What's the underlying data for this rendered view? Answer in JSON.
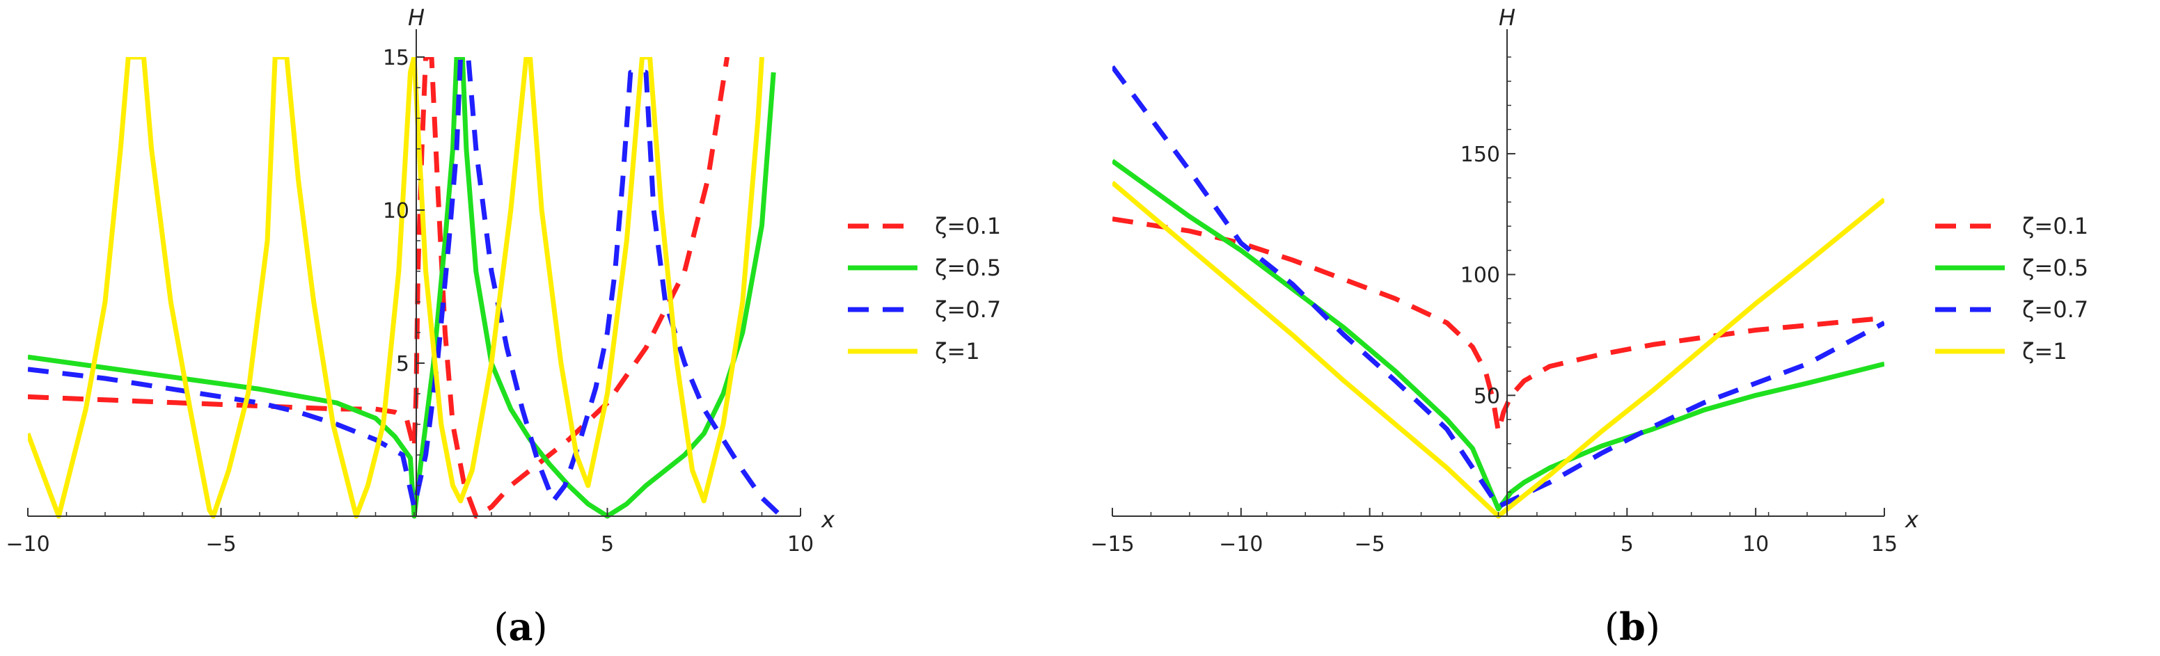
{
  "colors": {
    "series_0.1": "#ff2020",
    "series_0.5": "#1fe01f",
    "series_0.7": "#1f1fff",
    "series_1": "#ffee00",
    "axis": "#333333"
  },
  "chart_data": [
    {
      "panel_label": "a",
      "type": "line",
      "xlabel": "x",
      "ylabel": "H",
      "xlim": [
        -10,
        10
      ],
      "ylim": [
        0,
        15
      ],
      "xticks": [
        "−10",
        "−5",
        "5",
        "10"
      ],
      "yticks": [
        "5",
        "10",
        "15"
      ],
      "legend_position": "right",
      "series": [
        {
          "name": "ζ=0.1",
          "style": "dashed",
          "color": "#ff2020",
          "points": [
            [
              -10,
              3.9
            ],
            [
              -8,
              3.8
            ],
            [
              -6,
              3.7
            ],
            [
              -4,
              3.6
            ],
            [
              -2,
              3.5
            ],
            [
              -1,
              3.5
            ],
            [
              -0.5,
              3.4
            ],
            [
              -0.2,
              3.2
            ],
            [
              0,
              2.2
            ],
            [
              0.05,
              4
            ],
            [
              0.1,
              8
            ],
            [
              0.2,
              12
            ],
            [
              0.3,
              15
            ],
            [
              0.45,
              15
            ],
            [
              0.6,
              11
            ],
            [
              0.8,
              6
            ],
            [
              1.0,
              3
            ],
            [
              1.3,
              1
            ],
            [
              1.6,
              0
            ],
            [
              2.0,
              0.3
            ],
            [
              2.5,
              1.0
            ],
            [
              3.0,
              1.5
            ],
            [
              3.5,
              2.0
            ],
            [
              4.0,
              2.5
            ],
            [
              5.0,
              3.7
            ],
            [
              6.0,
              5.5
            ],
            [
              7.0,
              8.0
            ],
            [
              7.6,
              11
            ],
            [
              8.1,
              15
            ]
          ]
        },
        {
          "name": "ζ=0.5",
          "style": "solid",
          "color": "#1fe01f",
          "points": [
            [
              -10,
              5.2
            ],
            [
              -8,
              4.85
            ],
            [
              -6,
              4.5
            ],
            [
              -4,
              4.15
            ],
            [
              -2,
              3.7
            ],
            [
              -1,
              3.2
            ],
            [
              -0.5,
              2.6
            ],
            [
              -0.1,
              1.9
            ],
            [
              0,
              0
            ],
            [
              0.2,
              2
            ],
            [
              0.5,
              5
            ],
            [
              0.8,
              9
            ],
            [
              1.0,
              12
            ],
            [
              1.1,
              15
            ],
            [
              1.25,
              15
            ],
            [
              1.35,
              12
            ],
            [
              1.6,
              8
            ],
            [
              2,
              5
            ],
            [
              2.5,
              3.5
            ],
            [
              3,
              2.5
            ],
            [
              3.5,
              1.7
            ],
            [
              4,
              1.0
            ],
            [
              4.5,
              0.4
            ],
            [
              5,
              0
            ],
            [
              5.5,
              0.4
            ],
            [
              6,
              1.0
            ],
            [
              6.5,
              1.5
            ],
            [
              7,
              2.0
            ],
            [
              7.5,
              2.7
            ],
            [
              8,
              4
            ],
            [
              8.5,
              6
            ],
            [
              9,
              9.5
            ],
            [
              9.3,
              14.5
            ]
          ]
        },
        {
          "name": "ζ=0.7",
          "style": "dashed",
          "color": "#1f1fff",
          "points": [
            [
              -10,
              4.8
            ],
            [
              -8,
              4.5
            ],
            [
              -6,
              4.1
            ],
            [
              -4,
              3.7
            ],
            [
              -3,
              3.4
            ],
            [
              -2,
              3.0
            ],
            [
              -1,
              2.5
            ],
            [
              -0.3,
              2
            ],
            [
              0,
              0.3
            ],
            [
              0.3,
              2
            ],
            [
              0.6,
              5
            ],
            [
              0.9,
              9
            ],
            [
              1.1,
              12
            ],
            [
              1.2,
              15
            ],
            [
              1.4,
              15
            ],
            [
              1.6,
              12
            ],
            [
              2.0,
              8
            ],
            [
              2.4,
              5.5
            ],
            [
              2.8,
              3.5
            ],
            [
              3.2,
              1.8
            ],
            [
              3.6,
              0.5
            ],
            [
              3.9,
              1
            ],
            [
              4.3,
              2.5
            ],
            [
              4.7,
              4.2
            ],
            [
              5.0,
              6
            ],
            [
              5.2,
              8
            ],
            [
              5.4,
              11
            ],
            [
              5.6,
              14.5
            ],
            [
              6.0,
              14.5
            ],
            [
              6.2,
              10
            ],
            [
              6.5,
              7
            ],
            [
              7,
              5
            ],
            [
              7.5,
              3.5
            ],
            [
              8,
              2.5
            ],
            [
              8.5,
              1.5
            ],
            [
              9,
              0.6
            ],
            [
              9.5,
              0
            ]
          ]
        },
        {
          "name": "ζ=1",
          "style": "solid",
          "color": "#ffee00",
          "points": [
            [
              -10,
              2.7
            ],
            [
              -9.5,
              1.0
            ],
            [
              -9.2,
              0
            ],
            [
              -8.9,
              1.5
            ],
            [
              -8.5,
              3.5
            ],
            [
              -8,
              7
            ],
            [
              -7.6,
              12
            ],
            [
              -7.4,
              15
            ],
            [
              -7.0,
              15
            ],
            [
              -6.8,
              12
            ],
            [
              -6.3,
              7
            ],
            [
              -5.8,
              3.5
            ],
            [
              -5.3,
              0.2
            ],
            [
              -5.2,
              0
            ],
            [
              -4.8,
              1.5
            ],
            [
              -4.3,
              4
            ],
            [
              -3.8,
              9
            ],
            [
              -3.6,
              15
            ],
            [
              -3.3,
              15
            ],
            [
              -3.0,
              11
            ],
            [
              -2.6,
              7
            ],
            [
              -2.1,
              3
            ],
            [
              -1.6,
              0.5
            ],
            [
              -1.5,
              0
            ],
            [
              -1.2,
              1
            ],
            [
              -0.8,
              3
            ],
            [
              -0.4,
              8
            ],
            [
              -0.1,
              14.5
            ],
            [
              0.0,
              15
            ],
            [
              0.3,
              8
            ],
            [
              0.7,
              3
            ],
            [
              1.0,
              1
            ],
            [
              1.2,
              0.5
            ],
            [
              1.5,
              1.5
            ],
            [
              2.0,
              5
            ],
            [
              2.5,
              10
            ],
            [
              2.9,
              15
            ],
            [
              3.0,
              15
            ],
            [
              3.3,
              10
            ],
            [
              3.8,
              5
            ],
            [
              4.2,
              2
            ],
            [
              4.5,
              1
            ],
            [
              5,
              4
            ],
            [
              5.5,
              9
            ],
            [
              5.9,
              15
            ],
            [
              6.1,
              15
            ],
            [
              6.4,
              10
            ],
            [
              6.8,
              5
            ],
            [
              7.2,
              1.5
            ],
            [
              7.5,
              0.5
            ],
            [
              8.0,
              3
            ],
            [
              8.5,
              7
            ],
            [
              8.9,
              13
            ],
            [
              9.0,
              15
            ]
          ]
        }
      ]
    },
    {
      "panel_label": "b",
      "type": "line",
      "xlabel": "x",
      "ylabel": "H",
      "xlim": [
        -15,
        15
      ],
      "ylim": [
        0,
        190
      ],
      "xticks": [
        "−15",
        "−10",
        "−5",
        "5",
        "10",
        "15"
      ],
      "yticks": [
        "50",
        "100",
        "150"
      ],
      "legend_position": "right",
      "series": [
        {
          "name": "ζ=0.1",
          "style": "dashed",
          "color": "#ff2020",
          "points": [
            [
              -15,
              123
            ],
            [
              -12,
              118
            ],
            [
              -10,
              113
            ],
            [
              -8,
              106
            ],
            [
              -6,
              98
            ],
            [
              -4,
              90
            ],
            [
              -2,
              80
            ],
            [
              -1,
              70
            ],
            [
              -0.5,
              60
            ],
            [
              -0.2,
              48
            ],
            [
              0,
              35
            ],
            [
              0.2,
              43
            ],
            [
              0.5,
              50
            ],
            [
              1,
              56
            ],
            [
              2,
              62
            ],
            [
              4,
              67
            ],
            [
              6,
              71
            ],
            [
              8,
              74
            ],
            [
              10,
              77
            ],
            [
              12,
              79
            ],
            [
              15,
              82
            ]
          ]
        },
        {
          "name": "ζ=0.5",
          "style": "solid",
          "color": "#1fe01f",
          "points": [
            [
              -15,
              147
            ],
            [
              -12,
              124
            ],
            [
              -10,
              110
            ],
            [
              -8,
              94
            ],
            [
              -6,
              78
            ],
            [
              -4,
              60
            ],
            [
              -2,
              40
            ],
            [
              -1,
              28
            ],
            [
              0,
              3
            ],
            [
              0.5,
              10
            ],
            [
              1,
              14
            ],
            [
              2,
              20
            ],
            [
              4,
              29
            ],
            [
              6,
              36
            ],
            [
              8,
              44
            ],
            [
              10,
              50
            ],
            [
              12,
              55
            ],
            [
              15,
              63
            ]
          ]
        },
        {
          "name": "ζ=0.7",
          "style": "dashed",
          "color": "#1f1fff",
          "points": [
            [
              -15,
              186
            ],
            [
              -12,
              143
            ],
            [
              -10,
              113
            ],
            [
              -8,
              96
            ],
            [
              -6,
              75
            ],
            [
              -4,
              56
            ],
            [
              -2,
              36
            ],
            [
              0,
              4
            ],
            [
              2,
              14
            ],
            [
              4,
              26
            ],
            [
              6,
              37
            ],
            [
              8,
              47
            ],
            [
              10,
              55
            ],
            [
              12,
              63
            ],
            [
              15,
              80
            ]
          ]
        },
        {
          "name": "ζ=1",
          "style": "solid",
          "color": "#ffee00",
          "points": [
            [
              -15,
              138
            ],
            [
              -12,
              111
            ],
            [
              -10,
              93
            ],
            [
              -8,
              75
            ],
            [
              -6,
              56
            ],
            [
              -4,
              38
            ],
            [
              -2,
              20
            ],
            [
              0,
              0
            ],
            [
              2,
              17
            ],
            [
              4,
              35
            ],
            [
              6,
              52
            ],
            [
              8,
              70
            ],
            [
              10,
              88
            ],
            [
              12,
              105
            ],
            [
              15,
              131
            ]
          ]
        }
      ]
    }
  ]
}
